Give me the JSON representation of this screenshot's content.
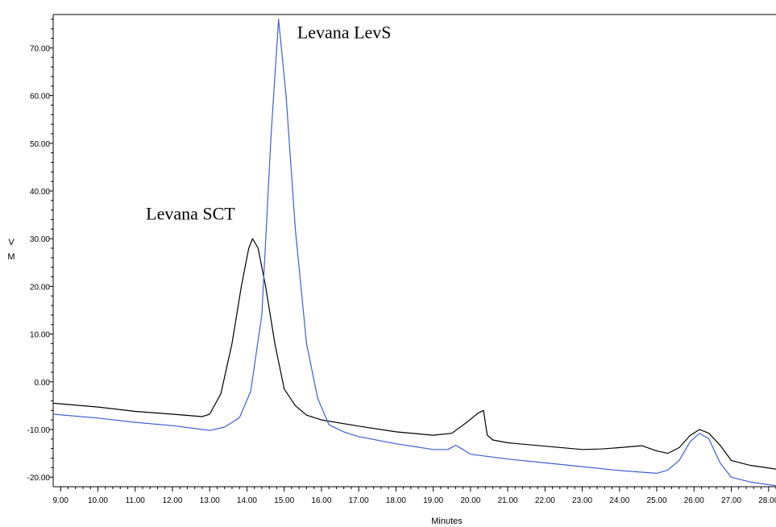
{
  "chart_data": {
    "type": "line",
    "xlabel": "Minutes",
    "ylabel_lines": [
      "V",
      "M"
    ],
    "xlim": [
      8.8,
      28.2
    ],
    "ylim": [
      -22,
      77
    ],
    "x_ticks": [
      "9.00",
      "10.00",
      "11.00",
      "12.00",
      "13.00",
      "14.00",
      "15.00",
      "16.00",
      "17.00",
      "18.00",
      "19.00",
      "20.00",
      "21.00",
      "22.00",
      "23.00",
      "24.00",
      "25.00",
      "26.00",
      "27.00",
      "28.00"
    ],
    "y_ticks": [
      "-20.00",
      "-10.00",
      "0.00",
      "10.00",
      "20.00",
      "30.00",
      "40.00",
      "50.00",
      "60.00",
      "70.00"
    ],
    "grid": false,
    "series": [
      {
        "color": "#000000",
        "x": [
          8.8,
          10,
          11,
          12,
          12.8,
          13.0,
          13.3,
          13.6,
          13.85,
          14.05,
          14.15,
          14.3,
          14.5,
          14.75,
          15.0,
          15.3,
          15.6,
          16.0,
          17.0,
          18.0,
          19.0,
          19.5,
          19.9,
          20.2,
          20.35,
          20.45,
          20.6,
          21,
          22,
          23,
          23.5,
          24,
          24.6,
          25.0,
          25.3,
          25.6,
          25.9,
          26.15,
          26.4,
          26.7,
          27.0,
          27.5,
          28.2
        ],
        "y": [
          -4.5,
          -5.3,
          -6.2,
          -6.8,
          -7.3,
          -6.8,
          -2.5,
          8,
          20,
          28,
          30,
          28,
          20,
          8,
          -1.5,
          -5,
          -7,
          -8,
          -9.3,
          -10.5,
          -11.2,
          -10.8,
          -8.5,
          -6.6,
          -6.0,
          -11.2,
          -12.2,
          -12.8,
          -13.5,
          -14.2,
          -14.1,
          -13.8,
          -13.4,
          -14.5,
          -15.0,
          -13.8,
          -11.2,
          -10.0,
          -10.8,
          -13.3,
          -16.5,
          -17.5,
          -18.3
        ]
      },
      {
        "color": "#3b5fd8",
        "x": [
          8.8,
          10,
          11,
          12,
          13.0,
          13.4,
          13.8,
          14.1,
          14.4,
          14.65,
          14.85,
          15.05,
          15.3,
          15.6,
          15.9,
          16.2,
          16.6,
          17.0,
          18.0,
          19.0,
          19.4,
          19.6,
          19.8,
          20.0,
          21,
          22,
          23,
          24,
          25.0,
          25.3,
          25.6,
          25.9,
          26.15,
          26.4,
          26.7,
          27.0,
          27.5,
          28.2
        ],
        "y": [
          -6.8,
          -7.6,
          -8.5,
          -9.2,
          -10.2,
          -9.5,
          -7.5,
          -2,
          14,
          52,
          76,
          60,
          32,
          8,
          -3.5,
          -9,
          -10.5,
          -11.5,
          -13,
          -14.2,
          -14.2,
          -13.3,
          -14.2,
          -15.2,
          -16.2,
          -17.0,
          -17.8,
          -18.6,
          -19.2,
          -18.5,
          -16.5,
          -12.5,
          -10.8,
          -12,
          -17,
          -20,
          -21,
          -21.8
        ]
      }
    ],
    "annotations": [
      {
        "text": "Levana LevS",
        "x": 15.35,
        "y": 72.0
      },
      {
        "text": "Levana SCT",
        "x": 13.6,
        "y": 34.0
      }
    ]
  }
}
